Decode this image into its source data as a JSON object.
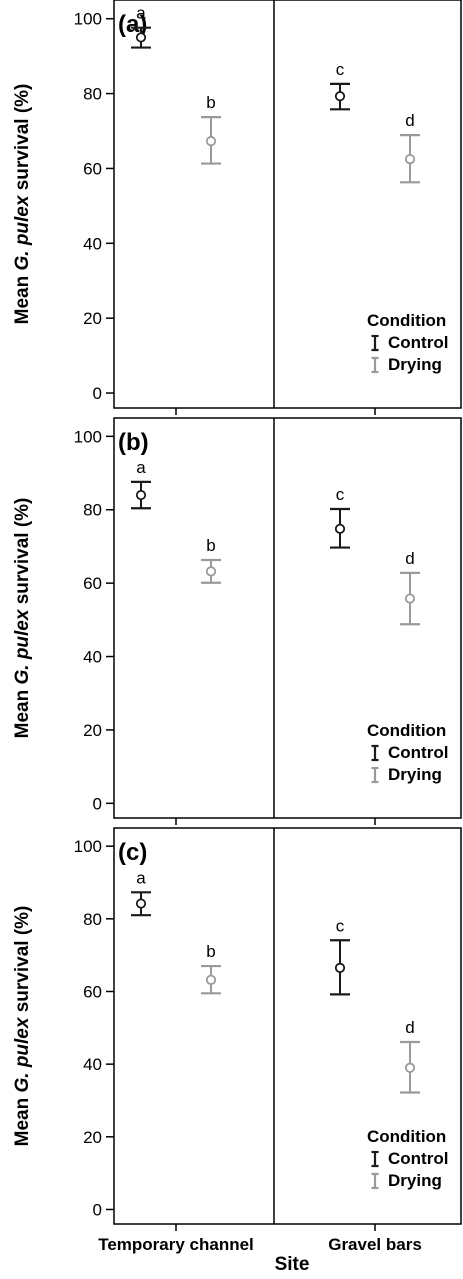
{
  "figure": {
    "xlabel": "Site",
    "ylabel_parts": [
      "Mean ",
      "G. pulex",
      " survival (%)"
    ],
    "legend_title": "Condition",
    "colors": {
      "control": "#1a1a1a",
      "drying": "#9a9a9a",
      "frame": "#000000"
    }
  },
  "chart_data": [
    {
      "type": "errorbar",
      "panel_label": "(a)",
      "categories": [
        "Temporary channel",
        "Gravel bars"
      ],
      "ylim": [
        -4,
        105
      ],
      "yticks": [
        0,
        20,
        40,
        60,
        80,
        100
      ],
      "legend": {
        "title": "Condition",
        "entries": [
          "Control",
          "Drying"
        ],
        "placement": "bottom-right"
      },
      "series": [
        {
          "name": "Control",
          "color": "#1a1a1a",
          "mean": [
            95,
            79.3
          ],
          "lower": [
            92.3,
            75.8
          ],
          "upper": [
            97.6,
            82.6
          ],
          "letters": [
            "a",
            "c"
          ]
        },
        {
          "name": "Drying",
          "color": "#9a9a9a",
          "mean": [
            67.3,
            62.5
          ],
          "lower": [
            61.3,
            56.3
          ],
          "upper": [
            73.7,
            68.9
          ],
          "letters": [
            "b",
            "d"
          ]
        }
      ]
    },
    {
      "type": "errorbar",
      "panel_label": "(b)",
      "categories": [
        "Temporary channel",
        "Gravel bars"
      ],
      "ylim": [
        -4,
        105
      ],
      "yticks": [
        0,
        20,
        40,
        60,
        80,
        100
      ],
      "legend": {
        "title": "Condition",
        "entries": [
          "Control",
          "Drying"
        ],
        "placement": "bottom-right"
      },
      "series": [
        {
          "name": "Control",
          "color": "#1a1a1a",
          "mean": [
            84,
            74.8
          ],
          "lower": [
            80.4,
            69.7
          ],
          "upper": [
            87.6,
            80.2
          ],
          "letters": [
            "a",
            "c"
          ]
        },
        {
          "name": "Drying",
          "color": "#9a9a9a",
          "mean": [
            63.2,
            55.8
          ],
          "lower": [
            60.1,
            48.8
          ],
          "upper": [
            66.3,
            62.8
          ],
          "letters": [
            "b",
            "d"
          ]
        }
      ]
    },
    {
      "type": "errorbar",
      "panel_label": "(c)",
      "categories": [
        "Temporary channel",
        "Gravel bars"
      ],
      "ylim": [
        -4,
        105
      ],
      "yticks": [
        0,
        20,
        40,
        60,
        80,
        100
      ],
      "xticklabels": [
        "Temporary channel",
        "Gravel bars"
      ],
      "legend": {
        "title": "Condition",
        "entries": [
          "Control",
          "Drying"
        ],
        "placement": "bottom-right"
      },
      "series": [
        {
          "name": "Control",
          "color": "#1a1a1a",
          "mean": [
            84.2,
            66.5
          ],
          "lower": [
            81,
            59.2
          ],
          "upper": [
            87.3,
            74.1
          ],
          "letters": [
            "a",
            "c"
          ]
        },
        {
          "name": "Drying",
          "color": "#9a9a9a",
          "mean": [
            63.2,
            39
          ],
          "lower": [
            59.5,
            32.2
          ],
          "upper": [
            67,
            46.1
          ],
          "letters": [
            "b",
            "d"
          ]
        }
      ]
    }
  ]
}
